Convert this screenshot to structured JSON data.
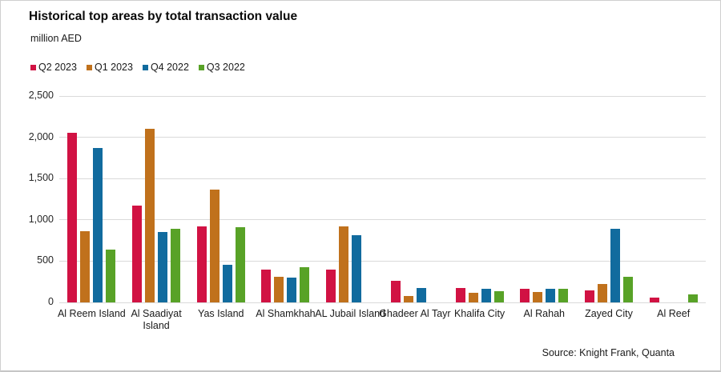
{
  "source": "Source: Knight Frank, Quanta",
  "chart_data": {
    "type": "bar",
    "title": "Historical top areas by total transaction value",
    "unit": "million AED",
    "xlabel": "",
    "ylabel": "million AED",
    "ylim": [
      0,
      2500
    ],
    "ytick_step": 500,
    "ytick_labels": [
      "0",
      "500",
      "1,000",
      "1,500",
      "2,000",
      "2,500"
    ],
    "grid": true,
    "legend_position": "top-left",
    "categories": [
      "Al Reem Island",
      "Al Saadiyat Island",
      "Yas Island",
      "Al Shamkhah",
      "AL Jubail Island",
      "Ghadeer Al Tayr",
      "Khalifa City",
      "Al Rahah",
      "Zayed City",
      "Al Reef"
    ],
    "series": [
      {
        "name": "Q2 2023",
        "color": "#D11243",
        "values": [
          2050,
          1170,
          920,
          400,
          400,
          265,
          170,
          160,
          150,
          55
        ]
      },
      {
        "name": "Q1 2023",
        "color": "#C0711C",
        "values": [
          860,
          2100,
          1365,
          310,
          920,
          80,
          115,
          125,
          220,
          0
        ]
      },
      {
        "name": "Q4 2022",
        "color": "#116B9E",
        "values": [
          1870,
          855,
          460,
          300,
          810,
          175,
          165,
          160,
          890,
          0
        ]
      },
      {
        "name": "Q3 2022",
        "color": "#58A227",
        "values": [
          640,
          895,
          915,
          425,
          0,
          0,
          135,
          160,
          310,
          95
        ]
      }
    ]
  }
}
